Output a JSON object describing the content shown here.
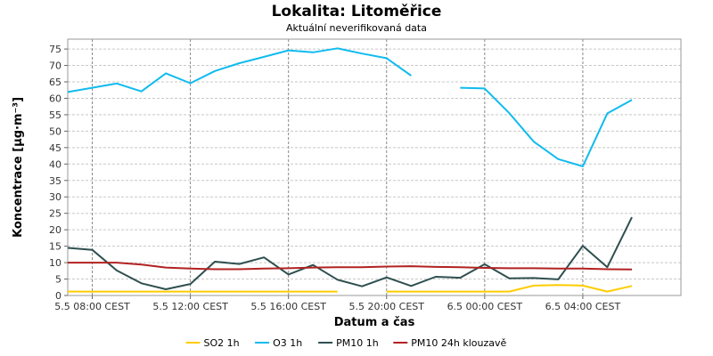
{
  "chart_data": {
    "type": "line",
    "title": "Lokalita: Litoměřice",
    "subtitle": "Aktuální neverifikovaná data",
    "xlabel": "Datum a čas",
    "ylabel": "Koncentrace [µg·m⁻³]",
    "ylim": [
      0,
      78
    ],
    "yticks": [
      0,
      5,
      10,
      15,
      20,
      25,
      30,
      35,
      40,
      45,
      50,
      55,
      60,
      65,
      70,
      75
    ],
    "xlim": [
      "2025-05-05 07:00",
      "2025-05-06 08:00"
    ],
    "x_ticks": [
      {
        "t": "2025-05-05 08:00",
        "label": "5.5 08:00 CEST"
      },
      {
        "t": "2025-05-05 12:00",
        "label": "5.5 12:00 CEST"
      },
      {
        "t": "2025-05-05 16:00",
        "label": "5.5 16:00 CEST"
      },
      {
        "t": "2025-05-05 20:00",
        "label": "5.5 20:00 CEST"
      },
      {
        "t": "2025-05-06 00:00",
        "label": "6.5 00:00 CEST"
      },
      {
        "t": "2025-05-06 04:00",
        "label": "6.5 04:00 CEST"
      }
    ],
    "grid": true,
    "legend_position": "bottom",
    "x": [
      "2025-05-05 07:00",
      "2025-05-05 08:00",
      "2025-05-05 09:00",
      "2025-05-05 10:00",
      "2025-05-05 11:00",
      "2025-05-05 12:00",
      "2025-05-05 13:00",
      "2025-05-05 14:00",
      "2025-05-05 15:00",
      "2025-05-05 16:00",
      "2025-05-05 17:00",
      "2025-05-05 18:00",
      "2025-05-05 19:00",
      "2025-05-05 20:00",
      "2025-05-05 21:00",
      "2025-05-05 22:00",
      "2025-05-05 23:00",
      "2025-05-06 00:00",
      "2025-05-06 01:00",
      "2025-05-06 02:00",
      "2025-05-06 03:00",
      "2025-05-06 04:00",
      "2025-05-06 05:00",
      "2025-05-06 06:00"
    ],
    "series": [
      {
        "name": "SO2 1h",
        "color": "#ffcc00",
        "values": [
          1.2,
          1.2,
          1.2,
          1.2,
          1.2,
          1.2,
          1.2,
          1.2,
          1.2,
          1.2,
          1.2,
          1.2,
          null,
          1.2,
          1.2,
          1.2,
          1.2,
          1.2,
          1.2,
          3.0,
          3.2,
          3.0,
          1.2,
          2.9
        ]
      },
      {
        "name": "O3 1h",
        "color": "#11bbee",
        "values": [
          61.9,
          63.2,
          64.5,
          62.1,
          67.6,
          64.6,
          68.3,
          70.7,
          72.6,
          74.6,
          74.0,
          75.2,
          73.6,
          72.2,
          66.9,
          null,
          63.2,
          63.0,
          55.5,
          46.8,
          41.5,
          39.3,
          55.4,
          59.5
        ]
      },
      {
        "name": "PM10 1h",
        "color": "#2f4f4f",
        "values": [
          14.5,
          13.9,
          7.6,
          3.7,
          1.9,
          3.5,
          10.3,
          9.6,
          11.6,
          6.4,
          9.3,
          4.8,
          2.8,
          5.5,
          2.9,
          5.7,
          5.4,
          9.5,
          5.2,
          5.3,
          4.9,
          15.1,
          8.6,
          23.8
        ]
      },
      {
        "name": "PM10 24h klouzavě",
        "color": "#b22222",
        "values": [
          10.0,
          10.0,
          10.0,
          9.4,
          8.5,
          8.2,
          8.0,
          8.0,
          8.2,
          8.3,
          8.5,
          8.6,
          8.6,
          8.8,
          8.9,
          8.7,
          8.6,
          8.4,
          8.3,
          8.3,
          8.2,
          8.2,
          8.0,
          7.9
        ]
      }
    ]
  }
}
